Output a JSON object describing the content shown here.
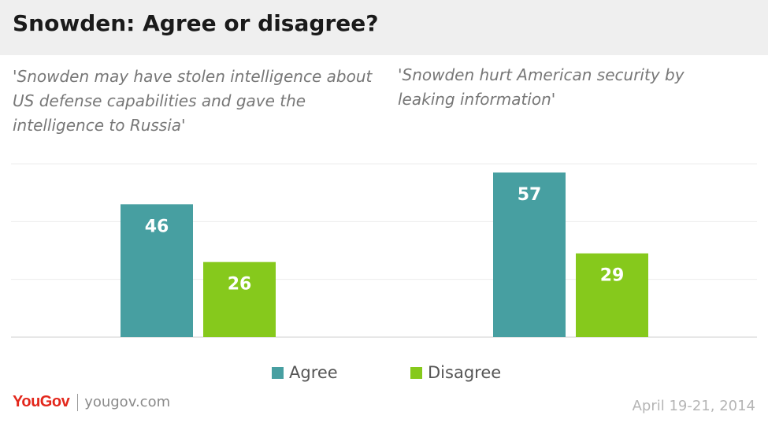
{
  "title": "Snowden: Agree or disagree?",
  "chart_data": {
    "type": "bar",
    "categories": [
      "'Snowden may have stolen intelligence about US defense capabilities and gave the intelligence to Russia'",
      "'Snowden hurt American security by leaking information'"
    ],
    "series": [
      {
        "name": "Agree",
        "color": "#479fa1",
        "values": [
          46,
          57
        ]
      },
      {
        "name": "Disagree",
        "color": "#86c91c",
        "values": [
          26,
          29
        ]
      }
    ],
    "ylim": [
      0,
      60
    ],
    "grid": true,
    "legend": "bottom-center"
  },
  "brand": {
    "logo": "YouGov",
    "site": "yougov.com"
  },
  "date": "April 19-21, 2014"
}
